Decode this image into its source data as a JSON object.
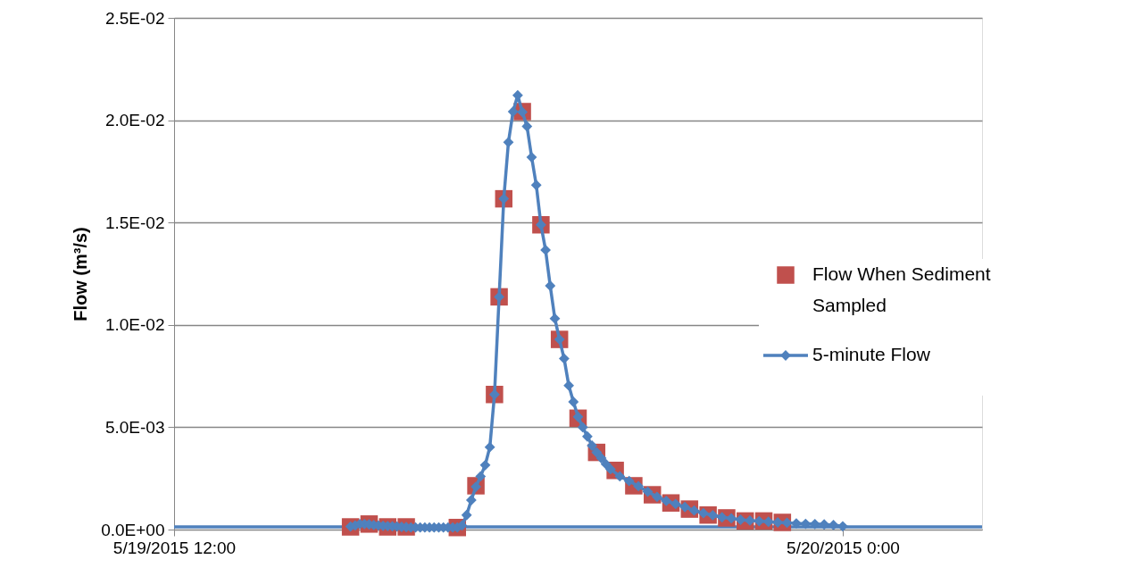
{
  "chart_data": {
    "type": "line",
    "ylabel": "Flow (m³/s)",
    "xlim": [
      "2015-05-19T12:00",
      "2015-05-20T02:30"
    ],
    "xticks": [
      {
        "value": "2015-05-19T12:00",
        "label": "5/19/2015 12:00"
      },
      {
        "value": "2015-05-20T00:00",
        "label": "5/20/2015 0:00"
      }
    ],
    "ylim": [
      0,
      0.025
    ],
    "yticks": [
      {
        "value": 0,
        "label": "0.0E+00"
      },
      {
        "value": 0.005,
        "label": "5.0E-03"
      },
      {
        "value": 0.01,
        "label": "1.0E-02"
      },
      {
        "value": 0.015,
        "label": "1.5E-02"
      },
      {
        "value": 0.02,
        "label": "2.0E-02"
      },
      {
        "value": 0.025,
        "label": "2.5E-02"
      }
    ],
    "grid": "y",
    "legend": "right",
    "ref_lines": [
      {
        "axis": "y",
        "value": 0.00013,
        "color": "#4f81bd"
      }
    ],
    "series": [
      {
        "name": "Flow When Sediment Sampled",
        "type": "scatter",
        "marker": "square",
        "color": "#c0504d",
        "x": [
          "2015-05-19T15:10",
          "2015-05-19T15:30",
          "2015-05-19T15:50",
          "2015-05-19T16:10",
          "2015-05-19T17:05",
          "2015-05-19T17:25",
          "2015-05-19T17:45",
          "2015-05-19T17:50",
          "2015-05-19T17:55",
          "2015-05-19T18:15",
          "2015-05-19T18:35",
          "2015-05-19T18:55",
          "2015-05-19T19:15",
          "2015-05-19T19:35",
          "2015-05-19T19:55",
          "2015-05-19T20:15",
          "2015-05-19T20:35",
          "2015-05-19T20:55",
          "2015-05-19T21:15",
          "2015-05-19T21:35",
          "2015-05-19T21:55",
          "2015-05-19T22:15",
          "2015-05-19T22:35",
          "2015-05-19T22:55"
        ],
        "values": [
          0.00013,
          0.00027,
          0.00013,
          0.00013,
          0.0001,
          0.00214,
          0.0066,
          0.01137,
          0.01616,
          0.02042,
          0.01489,
          0.00929,
          0.00544,
          0.00377,
          0.00289,
          0.00214,
          0.0017,
          0.0013,
          0.001,
          0.00071,
          0.00057,
          0.00042,
          0.00042,
          0.00035
        ]
      },
      {
        "name": "5-minute Flow",
        "type": "line",
        "marker": "diamond",
        "color": "#4f81bd",
        "x": [
          "2015-05-19T15:10",
          "2015-05-19T15:15",
          "2015-05-19T15:20",
          "2015-05-19T15:25",
          "2015-05-19T15:30",
          "2015-05-19T15:35",
          "2015-05-19T15:40",
          "2015-05-19T15:45",
          "2015-05-19T15:50",
          "2015-05-19T15:55",
          "2015-05-19T16:00",
          "2015-05-19T16:05",
          "2015-05-19T16:10",
          "2015-05-19T16:15",
          "2015-05-19T16:20",
          "2015-05-19T16:25",
          "2015-05-19T16:30",
          "2015-05-19T16:35",
          "2015-05-19T16:40",
          "2015-05-19T16:45",
          "2015-05-19T16:50",
          "2015-05-19T16:55",
          "2015-05-19T17:00",
          "2015-05-19T17:05",
          "2015-05-19T17:10",
          "2015-05-19T17:15",
          "2015-05-19T17:20",
          "2015-05-19T17:25",
          "2015-05-19T17:30",
          "2015-05-19T17:35",
          "2015-05-19T17:40",
          "2015-05-19T17:45",
          "2015-05-19T17:50",
          "2015-05-19T17:55",
          "2015-05-19T18:00",
          "2015-05-19T18:05",
          "2015-05-19T18:10",
          "2015-05-19T18:15",
          "2015-05-19T18:20",
          "2015-05-19T18:25",
          "2015-05-19T18:30",
          "2015-05-19T18:35",
          "2015-05-19T18:40",
          "2015-05-19T18:45",
          "2015-05-19T18:50",
          "2015-05-19T18:55",
          "2015-05-19T19:00",
          "2015-05-19T19:05",
          "2015-05-19T19:10",
          "2015-05-19T19:15",
          "2015-05-19T19:20",
          "2015-05-19T19:25",
          "2015-05-19T19:30",
          "2015-05-19T19:35",
          "2015-05-19T19:40",
          "2015-05-19T19:45",
          "2015-05-19T19:50",
          "2015-05-19T20:00",
          "2015-05-19T20:10",
          "2015-05-19T20:20",
          "2015-05-19T20:30",
          "2015-05-19T20:40",
          "2015-05-19T20:50",
          "2015-05-19T21:00",
          "2015-05-19T21:10",
          "2015-05-19T21:20",
          "2015-05-19T21:30",
          "2015-05-19T21:40",
          "2015-05-19T21:50",
          "2015-05-19T22:00",
          "2015-05-19T22:10",
          "2015-05-19T22:20",
          "2015-05-19T22:30",
          "2015-05-19T22:40",
          "2015-05-19T22:50",
          "2015-05-19T23:00",
          "2015-05-19T23:10",
          "2015-05-19T23:20",
          "2015-05-19T23:30",
          "2015-05-19T23:40",
          "2015-05-19T23:50",
          "2015-05-20T00:00"
        ],
        "values": [
          0.00015,
          0.0002,
          0.00027,
          0.00027,
          0.00025,
          0.00022,
          0.0002,
          0.00018,
          0.00017,
          0.00016,
          0.00015,
          0.00013,
          0.00012,
          0.0001,
          0.0001,
          0.0001,
          0.0001,
          0.0001,
          0.0001,
          0.0001,
          0.0001,
          0.0001,
          0.0001,
          0.0001,
          0.0002,
          0.00071,
          0.00144,
          0.00209,
          0.0026,
          0.00315,
          0.00403,
          0.0066,
          0.01137,
          0.01616,
          0.01892,
          0.02042,
          0.02122,
          0.0204,
          0.0197,
          0.01819,
          0.01683,
          0.01489,
          0.01366,
          0.01191,
          0.01031,
          0.00929,
          0.00835,
          0.00704,
          0.00624,
          0.00551,
          0.005,
          0.00455,
          0.0041,
          0.00377,
          0.00349,
          0.0032,
          0.00295,
          0.0026,
          0.00237,
          0.00212,
          0.00185,
          0.0016,
          0.0014,
          0.00125,
          0.0011,
          0.00093,
          0.0008,
          0.0007,
          0.0006,
          0.00055,
          0.00048,
          0.00044,
          0.00041,
          0.00038,
          0.00035,
          0.00033,
          0.0003,
          0.00028,
          0.00027,
          0.00025,
          0.00022,
          0.00016
        ]
      }
    ]
  }
}
